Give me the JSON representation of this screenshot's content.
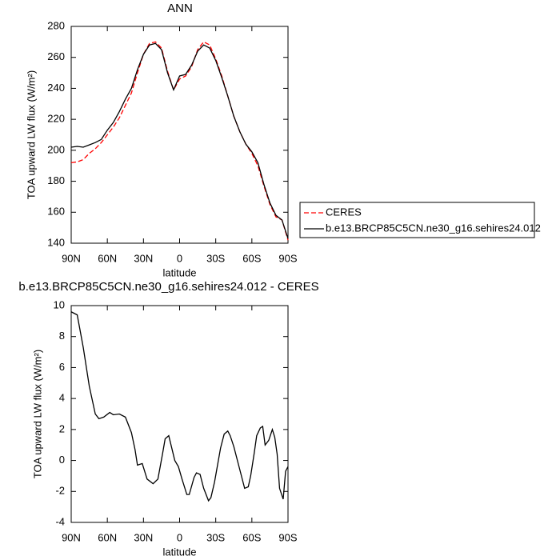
{
  "chart_data": [
    {
      "type": "line",
      "title": "ANN",
      "xlabel": "latitude",
      "ylabel": "TOA upward LW flux (W/m²)",
      "x": [
        90,
        85,
        80,
        75,
        70,
        65,
        60,
        55,
        50,
        45,
        40,
        35,
        30,
        25,
        20,
        15,
        10,
        5,
        0,
        -5,
        -10,
        -15,
        -20,
        -25,
        -30,
        -35,
        -40,
        -45,
        -50,
        -55,
        -60,
        -65,
        -70,
        -75,
        -80,
        -85,
        -90
      ],
      "series": [
        {
          "name": "CERES",
          "color": "#ff0000",
          "dashed": true,
          "values": [
            192,
            192.5,
            194,
            198,
            201,
            205,
            210,
            215,
            221,
            229,
            237,
            250,
            262,
            269,
            270,
            266,
            251,
            239,
            246,
            248,
            254,
            265,
            270,
            268,
            259,
            248,
            235,
            222,
            212,
            204,
            198,
            190,
            177,
            165,
            157,
            155,
            142
          ]
        },
        {
          "name": "b.e13.BRCP85C5CN.ne30_g16.sehires24.012",
          "color": "#000000",
          "dashed": false,
          "values": [
            202,
            202.5,
            202,
            203.5,
            205,
            207,
            213,
            218,
            225,
            233,
            240,
            252,
            262,
            268,
            269,
            265,
            250,
            239,
            248,
            249,
            255,
            264,
            268,
            266,
            258,
            247,
            235,
            222,
            212,
            204,
            199,
            192,
            178,
            166,
            158,
            155,
            143
          ]
        }
      ],
      "xlim": [
        90,
        -90
      ],
      "xticks": [
        {
          "value": 90,
          "label": "90N"
        },
        {
          "value": 60,
          "label": "60N"
        },
        {
          "value": 30,
          "label": "30N"
        },
        0,
        {
          "value": -30,
          "label": "30S"
        },
        {
          "value": -60,
          "label": "60S"
        },
        {
          "value": -90,
          "label": "90S"
        }
      ],
      "ylim": [
        140,
        280
      ],
      "yticks": [
        140,
        160,
        180,
        200,
        220,
        240,
        260,
        280
      ],
      "legend": "right"
    },
    {
      "type": "line",
      "title": "b.e13.BRCP85C5CN.ne30_g16.sehires24.012 - CERES",
      "xlabel": "latitude",
      "ylabel": "TOA upward LW flux (W/m²)",
      "x": [
        90,
        85,
        80,
        75,
        70,
        67,
        63,
        58,
        55,
        50,
        45,
        40,
        37,
        35,
        31,
        27,
        22,
        18,
        14,
        12,
        9,
        4,
        1,
        -2,
        -6,
        -8,
        -12,
        -14,
        -17,
        -20,
        -24,
        -26,
        -29,
        -34,
        -37,
        -40,
        -42,
        -45,
        -49,
        -54,
        -57,
        -59,
        -62,
        -64,
        -67,
        -69,
        -71,
        -74,
        -77,
        -79,
        -81,
        -83,
        -86,
        -88,
        -90
      ],
      "values": [
        9.6,
        9.4,
        7.3,
        4.8,
        3.0,
        2.7,
        2.8,
        3.1,
        2.95,
        3.0,
        2.8,
        1.8,
        0.7,
        -0.3,
        -0.2,
        -1.2,
        -1.5,
        -1.2,
        0.5,
        1.4,
        1.6,
        0,
        -0.4,
        -1.2,
        -2.2,
        -2.2,
        -1.1,
        -0.8,
        -0.9,
        -1.8,
        -2.6,
        -2.4,
        -1.4,
        0.8,
        1.7,
        1.9,
        1.6,
        0.9,
        -0.3,
        -1.8,
        -1.7,
        -1.0,
        0.5,
        1.6,
        2.1,
        2.2,
        1.0,
        1.3,
        2.0,
        1.5,
        0.4,
        -1.8,
        -2.5,
        -0.7,
        -0.4
      ],
      "color": "#000000",
      "xlim": [
        90,
        -90
      ],
      "xticks": [
        {
          "value": 90,
          "label": "90N"
        },
        {
          "value": 60,
          "label": "60N"
        },
        {
          "value": 30,
          "label": "30N"
        },
        0,
        {
          "value": -30,
          "label": "30S"
        },
        {
          "value": -60,
          "label": "60S"
        },
        {
          "value": -90,
          "label": "90S"
        }
      ],
      "ylim": [
        -4,
        10
      ],
      "yticks": [
        -4,
        -2,
        0,
        2,
        4,
        6,
        8,
        10
      ]
    }
  ]
}
